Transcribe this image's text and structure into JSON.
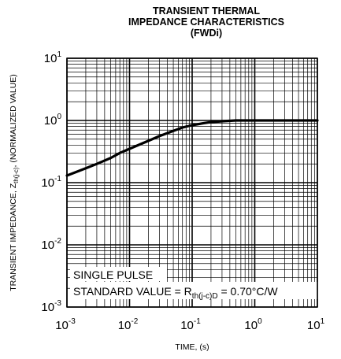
{
  "chart_data": {
    "type": "line",
    "title": [
      "TRANSIENT THERMAL",
      "IMPEDANCE CHARACTERISTICS",
      "(FWDi)"
    ],
    "xlabel": "TIME, (s)",
    "ylabel": {
      "main": "TRANSIENT IMPEDANCE, Z",
      "subscript": "th(j-c)",
      "suffix": ", (NORMALIZED VALUE)"
    },
    "x_scale": "log",
    "y_scale": "log",
    "xlim": [
      0.001,
      10
    ],
    "ylim": [
      0.001,
      10
    ],
    "x_ticks": [
      {
        "value": 0.001,
        "base": "10",
        "exp": "-3"
      },
      {
        "value": 0.01,
        "base": "10",
        "exp": "-2"
      },
      {
        "value": 0.1,
        "base": "10",
        "exp": "-1"
      },
      {
        "value": 1,
        "base": "10",
        "exp": "0"
      },
      {
        "value": 10,
        "base": "10",
        "exp": "1"
      }
    ],
    "y_ticks": [
      {
        "value": 0.001,
        "base": "10",
        "exp": "-3"
      },
      {
        "value": 0.01,
        "base": "10",
        "exp": "-2"
      },
      {
        "value": 0.1,
        "base": "10",
        "exp": "-1"
      },
      {
        "value": 1,
        "base": "10",
        "exp": "0"
      },
      {
        "value": 10,
        "base": "10",
        "exp": "1"
      }
    ],
    "grid": true,
    "series": [
      {
        "x": [
          0.001,
          0.002,
          0.003,
          0.005,
          0.007,
          0.01,
          0.02,
          0.03,
          0.05,
          0.07,
          0.1,
          0.15,
          0.2,
          0.3,
          0.5,
          0.7,
          1,
          2,
          5,
          10
        ],
        "y": [
          0.13,
          0.17,
          0.2,
          0.25,
          0.3,
          0.35,
          0.47,
          0.56,
          0.68,
          0.77,
          0.84,
          0.9,
          0.94,
          0.97,
          1.0,
          1.0,
          1.0,
          1.0,
          1.0,
          1.0
        ]
      }
    ],
    "annotations": {
      "line1": "SINGLE PULSE",
      "line2_prefix": "STANDARD VALUE = R",
      "line2_sub": "th(j-c)D",
      "line2_suffix": " = 0.70°C/W"
    }
  }
}
